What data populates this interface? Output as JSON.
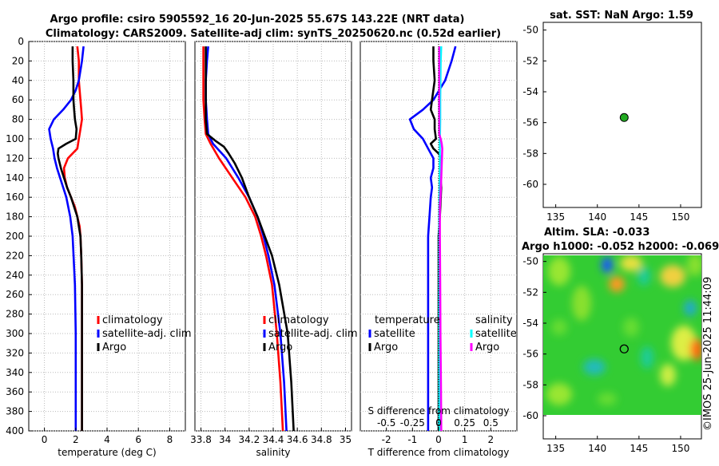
{
  "header": {
    "title_line1": "Argo profile: csiro 5905592_16 20-Jun-2025 55.67S 143.22E (NRT data)",
    "title_line2": "Climatology: CARS2009. Satellite-adj clim: synTS_20250620.nc (0.52d earlier)",
    "watermark": "©IMOS 25-Jun-2025 11:44:09"
  },
  "chart_data": [
    {
      "id": "temperature",
      "type": "line",
      "xlabel": "temperature (deg C)",
      "xlim": [
        -1,
        9
      ],
      "xticks": [
        0,
        2,
        4,
        6,
        8
      ],
      "ylim": [
        0,
        400
      ],
      "yticks": [
        0,
        20,
        40,
        60,
        80,
        100,
        120,
        140,
        160,
        180,
        200,
        220,
        240,
        260,
        280,
        300,
        320,
        340,
        360,
        380,
        400
      ],
      "grid": true,
      "legend": [
        "climatology",
        "satellite-adj. clim",
        "Argo"
      ],
      "series": [
        {
          "name": "climatology",
          "color": "#ff0000",
          "depth": [
            5,
            20,
            40,
            60,
            70,
            80,
            90,
            100,
            110,
            120,
            130,
            140,
            150,
            160,
            170,
            180,
            190,
            200,
            220,
            250,
            300,
            350,
            400
          ],
          "values": [
            2.1,
            2.2,
            2.2,
            2.3,
            2.35,
            2.4,
            2.3,
            2.2,
            2.1,
            1.5,
            1.25,
            1.3,
            1.45,
            1.7,
            1.95,
            2.1,
            2.25,
            2.3,
            2.35,
            2.4,
            2.4,
            2.4,
            2.4
          ]
        },
        {
          "name": "satellite-adj. clim",
          "color": "#0000ff",
          "depth": [
            5,
            20,
            40,
            50,
            60,
            70,
            80,
            90,
            100,
            110,
            120,
            130,
            140,
            150,
            160,
            180,
            200,
            250,
            300,
            350,
            400
          ],
          "values": [
            2.5,
            2.4,
            2.2,
            2.0,
            1.7,
            1.2,
            0.6,
            0.3,
            0.4,
            0.55,
            0.65,
            0.8,
            1.0,
            1.2,
            1.4,
            1.65,
            1.8,
            1.95,
            2.0,
            2.0,
            2.0
          ]
        },
        {
          "name": "Argo",
          "color": "#000000",
          "depth": [
            5,
            20,
            40,
            60,
            70,
            80,
            90,
            100,
            105,
            110,
            115,
            120,
            130,
            140,
            150,
            160,
            170,
            180,
            190,
            200,
            220,
            250,
            300,
            350,
            400
          ],
          "values": [
            1.8,
            1.8,
            1.85,
            1.85,
            1.9,
            1.95,
            2.05,
            2.0,
            1.4,
            0.9,
            0.85,
            0.9,
            1.05,
            1.25,
            1.45,
            1.7,
            1.9,
            2.1,
            2.2,
            2.3,
            2.35,
            2.4,
            2.4,
            2.4,
            2.4
          ]
        }
      ]
    },
    {
      "id": "salinity",
      "type": "line",
      "xlabel": "salinity",
      "xlim": [
        33.75,
        35.05
      ],
      "xticks": [
        33.8,
        34,
        34.2,
        34.4,
        34.6,
        34.8,
        35
      ],
      "ylim": [
        0,
        400
      ],
      "grid": true,
      "legend": [
        "climatology",
        "satellite-adj. clim",
        "Argo"
      ],
      "series": [
        {
          "name": "climatology",
          "color": "#ff0000",
          "depth": [
            5,
            20,
            40,
            60,
            80,
            95,
            105,
            120,
            140,
            160,
            180,
            200,
            220,
            250,
            300,
            350,
            400
          ],
          "values": [
            33.82,
            33.82,
            33.82,
            33.82,
            33.83,
            33.84,
            33.88,
            33.95,
            34.06,
            34.17,
            34.25,
            34.3,
            34.34,
            34.39,
            34.43,
            34.46,
            34.48
          ]
        },
        {
          "name": "satellite-adj. clim",
          "color": "#0000ff",
          "depth": [
            5,
            20,
            40,
            60,
            80,
            95,
            105,
            120,
            140,
            160,
            180,
            200,
            220,
            250,
            300,
            350,
            400
          ],
          "values": [
            33.86,
            33.85,
            33.84,
            33.84,
            33.85,
            33.86,
            33.9,
            34.01,
            34.11,
            34.2,
            34.27,
            34.32,
            34.36,
            34.41,
            34.46,
            34.49,
            34.51
          ]
        },
        {
          "name": "Argo",
          "color": "#000000",
          "depth": [
            5,
            20,
            40,
            60,
            80,
            95,
            102,
            108,
            115,
            125,
            140,
            160,
            180,
            200,
            220,
            250,
            300,
            350,
            400
          ],
          "values": [
            33.84,
            33.84,
            33.84,
            33.84,
            33.84,
            33.85,
            33.92,
            33.99,
            34.03,
            34.08,
            34.14,
            34.2,
            34.27,
            34.33,
            34.39,
            34.45,
            34.52,
            34.55,
            34.57
          ]
        }
      ]
    },
    {
      "id": "differences",
      "type": "line",
      "xlabel": "T difference from climatology",
      "xlabel_top": "S difference from climatology",
      "xlim": [
        -3,
        3
      ],
      "xticks": [
        -2,
        -1,
        0,
        1,
        2
      ],
      "xlim_top": [
        -0.75,
        0.75
      ],
      "xticks_top": [
        "-0.5",
        "-0.25",
        "0",
        "0.25",
        "0.5"
      ],
      "ylim": [
        0,
        400
      ],
      "grid": true,
      "legend_left_title": "temperature",
      "legend_right_title": "salinity",
      "legend_left": [
        "satellite",
        "Argo"
      ],
      "legend_right": [
        "satellite",
        "Argo"
      ],
      "series": [
        {
          "name": "temperature satellite",
          "color": "#0000ff",
          "depth": [
            5,
            20,
            40,
            60,
            70,
            80,
            90,
            100,
            110,
            120,
            130,
            140,
            150,
            160,
            180,
            200,
            250,
            300,
            350,
            400
          ],
          "values": [
            0.65,
            0.5,
            0.25,
            -0.2,
            -0.6,
            -1.1,
            -0.95,
            -0.6,
            -0.4,
            -0.2,
            -0.2,
            -0.3,
            -0.25,
            -0.3,
            -0.35,
            -0.4,
            -0.4,
            -0.4,
            -0.4,
            -0.4
          ]
        },
        {
          "name": "temperature Argo",
          "color": "#000000",
          "depth": [
            5,
            20,
            40,
            60,
            70,
            80,
            90,
            100,
            105,
            110,
            115,
            120,
            130,
            150,
            180,
            200,
            250,
            300,
            350,
            400
          ],
          "values": [
            -0.2,
            -0.2,
            -0.15,
            -0.25,
            -0.3,
            -0.15,
            -0.15,
            -0.1,
            -0.3,
            -0.2,
            0.0,
            0.1,
            0.05,
            0.1,
            0.05,
            0.0,
            0.0,
            0.0,
            0.0,
            0.0
          ]
        },
        {
          "name": "salinity satellite",
          "color": "#00ffff",
          "depth": [
            5,
            20,
            40,
            60,
            80,
            100,
            120,
            140,
            160,
            180,
            200,
            250,
            300,
            350,
            400
          ],
          "values": [
            0.1,
            0.08,
            0.07,
            0.06,
            0.06,
            0.05,
            0.05,
            0.04,
            0.03,
            0.02,
            0.02,
            0.02,
            0.02,
            0.02,
            0.02
          ]
        },
        {
          "name": "salinity Argo",
          "color": "#ff00ff",
          "depth": [
            5,
            20,
            40,
            60,
            80,
            95,
            100,
            105,
            110,
            120,
            140,
            160,
            170,
            180,
            200,
            250,
            300,
            350,
            400
          ],
          "values": [
            0.02,
            0.02,
            0.02,
            0.02,
            0.02,
            0.02,
            0.08,
            0.12,
            0.14,
            0.13,
            0.1,
            0.07,
            0.05,
            0.05,
            0.05,
            0.06,
            0.07,
            0.09,
            0.1
          ]
        }
      ]
    },
    {
      "id": "sst_map",
      "type": "scatter",
      "title": "sat. SST: NaN Argo: 1.59",
      "xlim": [
        133.5,
        152.5
      ],
      "xticks": [
        135,
        140,
        145,
        150
      ],
      "ylim": [
        -61.5,
        -49.5
      ],
      "yticks": [
        -50,
        -52,
        -54,
        -56,
        -58,
        -60
      ],
      "points": [
        {
          "lon": 143.22,
          "lat": -55.67,
          "color": "#22aa22"
        }
      ]
    },
    {
      "id": "sla_map",
      "type": "heatmap",
      "title_line1": "Altim. SLA: -0.033",
      "title_line2": "Argo h1000: -0.052 h2000: -0.069",
      "xlim": [
        133.5,
        152.5
      ],
      "xticks": [
        135,
        140,
        145,
        150
      ],
      "ylim": [
        -61.5,
        -49.5
      ],
      "yticks": [
        -50,
        -52,
        -54,
        -56,
        -58,
        -60
      ],
      "data_extent": {
        "lon": [
          133.5,
          152.5
        ],
        "lat": [
          -60,
          -49.5
        ]
      },
      "points": [
        {
          "lon": 143.22,
          "lat": -55.67,
          "marker": "open-circle"
        }
      ]
    }
  ]
}
